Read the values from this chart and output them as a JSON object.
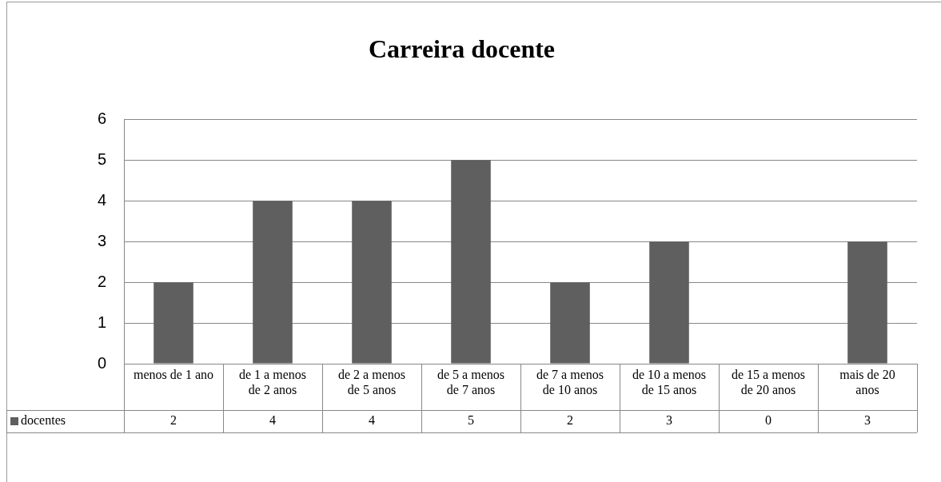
{
  "chart_data": {
    "type": "bar",
    "title": "Carreira docente",
    "categories": [
      "menos de 1 ano",
      "de 1 a menos de 2 anos",
      "de 2 a menos de 5 anos",
      "de 5 a menos de 7 anos",
      "de 7 a menos de 10 anos",
      "de 10 a menos de 15 anos",
      "de 15 a menos de 20 anos",
      "mais de 20 anos"
    ],
    "series": [
      {
        "name": "docentes",
        "color": "#5f5f5f",
        "values": [
          2,
          4,
          4,
          5,
          2,
          3,
          0,
          3
        ]
      }
    ],
    "ylim": [
      0,
      6
    ],
    "yticks": [
      0,
      1,
      2,
      3,
      4,
      5,
      6
    ],
    "grid": "y",
    "legend": "bottom",
    "data_labels": true
  }
}
